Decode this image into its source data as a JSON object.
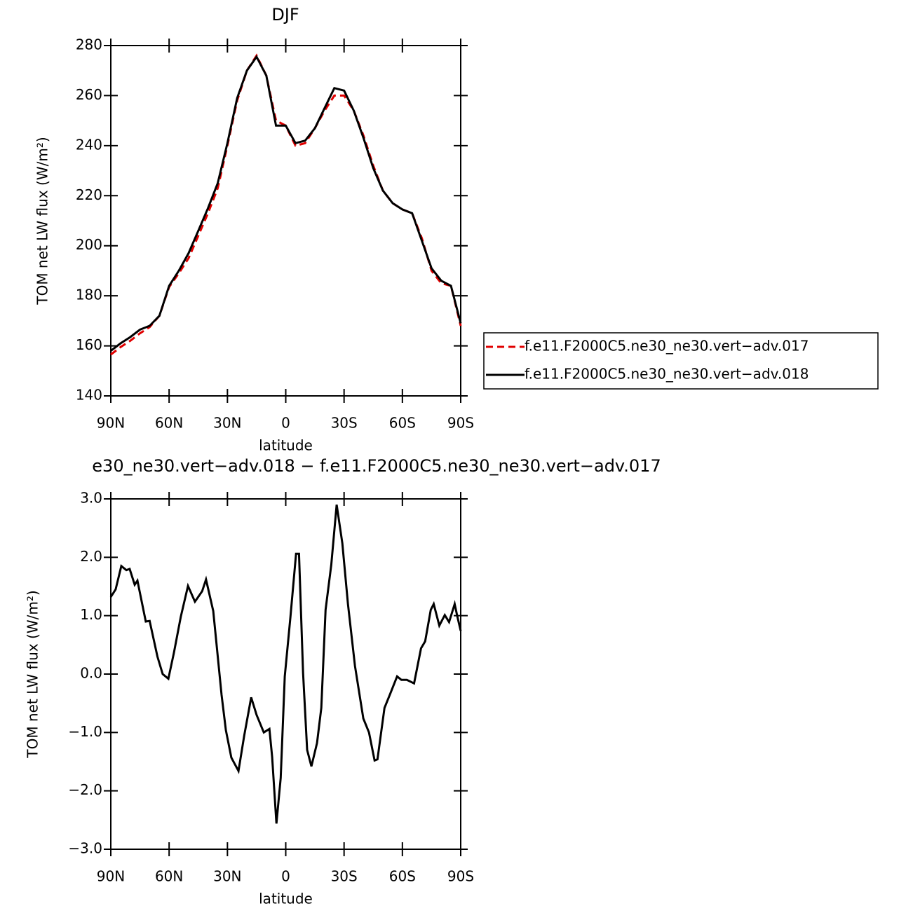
{
  "chart_data": [
    {
      "type": "line",
      "title": "DJF",
      "x_label": "latitude",
      "y_label": "TOM net LW flux (W/m²)",
      "x": [
        90,
        85,
        80,
        75,
        70,
        65,
        60,
        55,
        50,
        45,
        40,
        35,
        30,
        25,
        20,
        15,
        10,
        5,
        0,
        -5,
        -10,
        -15,
        -20,
        -25,
        -30,
        -35,
        -40,
        -45,
        -50,
        -55,
        -60,
        -65,
        -70,
        -75,
        -80,
        -85,
        -90
      ],
      "series": [
        {
          "name": "f.e11.F2000C5.ne30_ne30.vert−adv.017",
          "color": "#e00000",
          "line_style": "dashed",
          "values": [
            156.5,
            159.5,
            162,
            165,
            167.5,
            172,
            183.5,
            189,
            195,
            204,
            213,
            223,
            240,
            258,
            270,
            276,
            268,
            250,
            248,
            240,
            241,
            247,
            254,
            260,
            260,
            254,
            244,
            232,
            222,
            217,
            214.5,
            213,
            203,
            190,
            185,
            184,
            168
          ]
        },
        {
          "name": "f.e11.F2000C5.ne30_ne30.vert−adv.018",
          "color": "#000000",
          "line_style": "solid",
          "values": [
            158,
            161,
            163.5,
            166.5,
            168,
            172,
            184,
            190,
            197,
            206,
            215,
            225,
            241,
            259,
            270,
            275.5,
            268,
            248,
            248,
            241,
            242,
            247,
            255,
            263,
            262,
            254,
            243,
            231,
            222,
            217,
            214.5,
            213,
            202,
            191,
            186,
            184,
            169
          ]
        }
      ],
      "xlim": [
        90,
        -90
      ],
      "xticks": [
        {
          "value": 90,
          "label": "90N"
        },
        {
          "value": 60,
          "label": "60N"
        },
        {
          "value": 30,
          "label": "30N"
        },
        0,
        {
          "value": -30,
          "label": "30S"
        },
        {
          "value": -60,
          "label": "60S"
        },
        {
          "value": -90,
          "label": "90S"
        }
      ],
      "ylim": [
        140,
        280
      ],
      "yticks": [
        140,
        160,
        180,
        200,
        220,
        240,
        260,
        280
      ],
      "legend": "right"
    },
    {
      "type": "line",
      "title": "e30_ne30.vert−adv.018 − f.e11.F2000C5.ne30_ne30.vert−adv.017",
      "x_label": "latitude",
      "y_label": "TOM net LW flux (W/m²)",
      "x": [
        90,
        87.5,
        84.6,
        82,
        80.3,
        77.7,
        76.3,
        72,
        70,
        66,
        63.3,
        60.4,
        57.5,
        54,
        50.3,
        46.7,
        43,
        41,
        37.3,
        33,
        30.8,
        28,
        24.3,
        21.4,
        17.8,
        15,
        11.3,
        8.4,
        7,
        4.8,
        2.6,
        0.5,
        -2.4,
        -5.3,
        -6.8,
        -8.9,
        -11,
        -13.2,
        -16.1,
        -18.3,
        -20.5,
        -23.4,
        -26.2,
        -29.1,
        -32,
        -35.6,
        -39.9,
        -42.8,
        -45.7,
        -47.2,
        -50.8,
        -53.7,
        -57.3,
        -59.5,
        -62.3,
        -66,
        -69.6,
        -71.7,
        -74.6,
        -76.1,
        -79,
        -81.8,
        -84,
        -86.9,
        -88.3,
        -90
      ],
      "series": [
        {
          "color": "#000000",
          "line_style": "solid",
          "values": [
            1.32,
            1.45,
            1.85,
            1.78,
            1.8,
            1.53,
            1.6,
            0.9,
            0.91,
            0.3,
            0.0,
            -0.08,
            0.37,
            0.98,
            1.51,
            1.24,
            1.42,
            1.62,
            1.08,
            -0.36,
            -0.96,
            -1.43,
            -1.66,
            -1.06,
            -0.4,
            -0.7,
            -1.0,
            -0.94,
            -1.42,
            -2.56,
            -1.78,
            -0.04,
            0.98,
            2.06,
            2.06,
            0.02,
            -1.3,
            -1.58,
            -1.18,
            -0.58,
            1.1,
            1.87,
            2.9,
            2.24,
            1.2,
            0.14,
            -0.76,
            -1.0,
            -1.48,
            -1.46,
            -0.58,
            -0.34,
            -0.04,
            -0.1,
            -0.1,
            -0.16,
            0.44,
            0.56,
            1.1,
            1.2,
            0.83,
            1.01,
            0.89,
            1.2,
            0.98,
            0.74
          ]
        }
      ],
      "xlim": [
        90,
        -90
      ],
      "xticks": [
        {
          "value": 90,
          "label": "90N"
        },
        {
          "value": 60,
          "label": "60N"
        },
        {
          "value": 30,
          "label": "30N"
        },
        0,
        {
          "value": -30,
          "label": "30S"
        },
        {
          "value": -60,
          "label": "60S"
        },
        {
          "value": -90,
          "label": "90S"
        }
      ],
      "ylim": [
        -3,
        3
      ],
      "yticks": [
        {
          "value": -3,
          "label": "−3.0"
        },
        {
          "value": -2,
          "label": "−2.0"
        },
        {
          "value": -1,
          "label": "−1.0"
        },
        {
          "value": 0,
          "label": "0.0"
        },
        {
          "value": 1,
          "label": "1.0"
        },
        {
          "value": 2,
          "label": "2.0"
        },
        {
          "value": 3,
          "label": "3.0"
        }
      ]
    }
  ]
}
